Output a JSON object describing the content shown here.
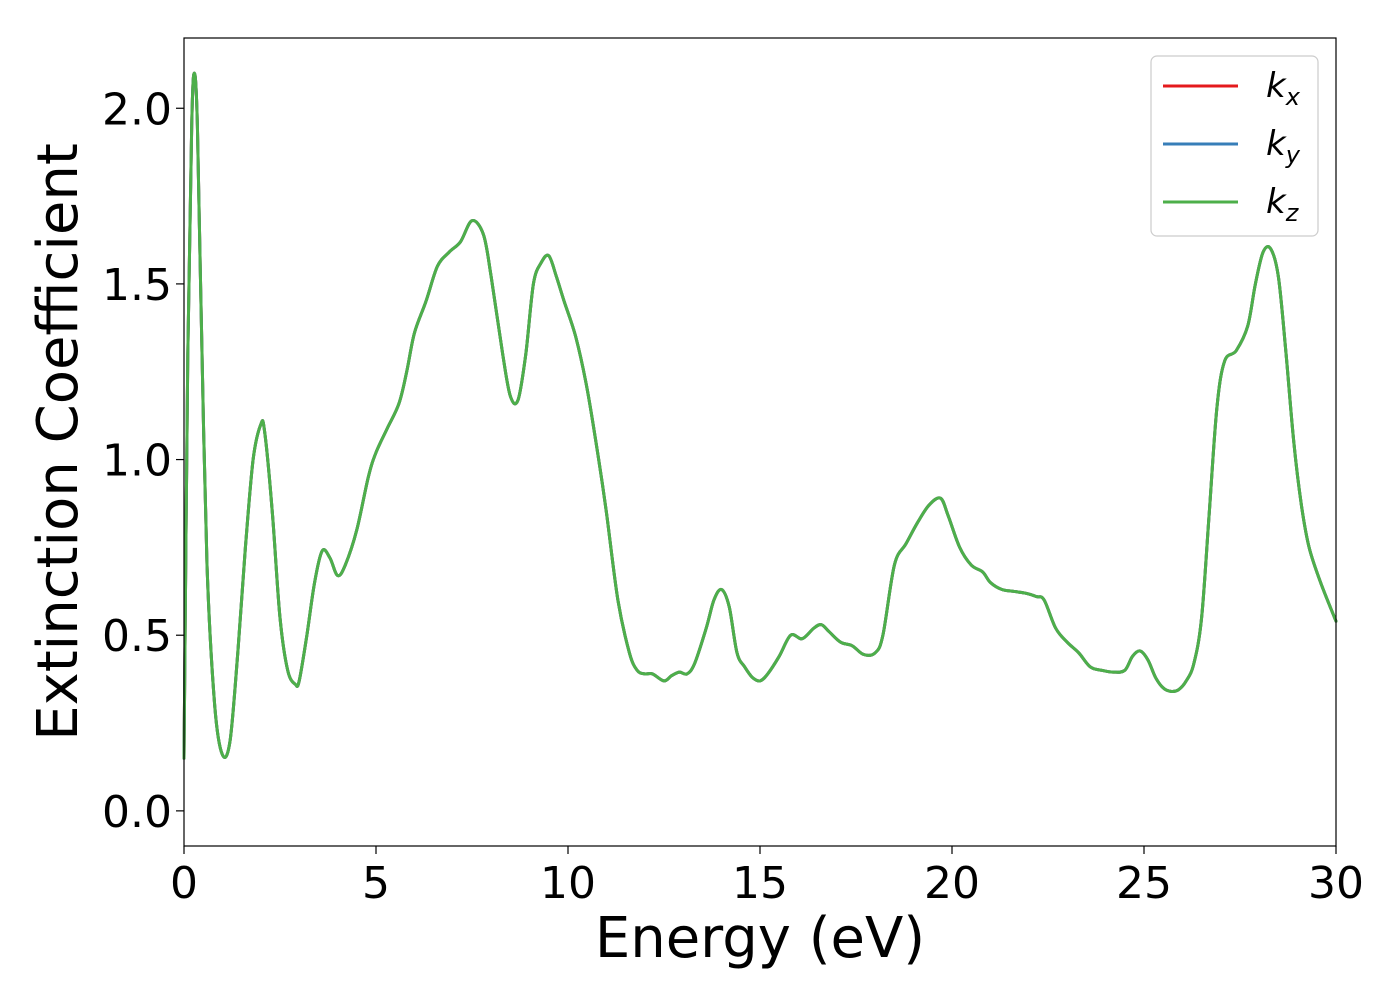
{
  "chart_data": {
    "type": "line",
    "title": "",
    "xlabel": "Energy (eV)",
    "ylabel": "Extinction Coefficient",
    "xlim": [
      0,
      30
    ],
    "ylim": [
      -0.1,
      2.2
    ],
    "xticks": [
      0,
      5,
      10,
      15,
      20,
      25,
      30
    ],
    "xtick_labels": [
      "0",
      "5",
      "10",
      "15",
      "20",
      "25",
      "30"
    ],
    "yticks": [
      0.0,
      0.5,
      1.0,
      1.5,
      2.0
    ],
    "ytick_labels": [
      "0.0",
      "0.5",
      "1.0",
      "1.5",
      "2.0"
    ],
    "grid": false,
    "legend_position": "top-right",
    "series": [
      {
        "name": "k_x",
        "label_base": "k",
        "label_sub": "x",
        "color": "#e41a1c",
        "x": [
          0,
          0.1,
          0.2,
          0.27,
          0.35,
          0.45,
          0.6,
          0.8,
          1.0,
          1.2,
          1.4,
          1.6,
          1.8,
          2.0,
          2.1,
          2.3,
          2.5,
          2.7,
          2.9,
          3.0,
          3.2,
          3.4,
          3.6,
          3.8,
          4.0,
          4.2,
          4.5,
          4.8,
          5.0,
          5.3,
          5.6,
          5.8,
          6.0,
          6.3,
          6.6,
          6.9,
          7.2,
          7.5,
          7.8,
          8.0,
          8.3,
          8.5,
          8.7,
          8.9,
          9.1,
          9.3,
          9.5,
          9.7,
          9.9,
          10.2,
          10.5,
          10.8,
          11.0,
          11.3,
          11.6,
          11.8,
          12.0,
          12.2,
          12.5,
          12.7,
          12.9,
          13.1,
          13.3,
          13.6,
          13.8,
          14.0,
          14.2,
          14.4,
          14.6,
          14.8,
          15.0,
          15.2,
          15.5,
          15.8,
          16.1,
          16.4,
          16.6,
          16.8,
          17.1,
          17.4,
          17.7,
          18.0,
          18.2,
          18.5,
          18.8,
          19.1,
          19.4,
          19.7,
          19.9,
          20.2,
          20.5,
          20.8,
          21.0,
          21.3,
          21.6,
          21.9,
          22.2,
          22.4,
          22.7,
          23.0,
          23.3,
          23.6,
          23.9,
          24.2,
          24.5,
          24.7,
          24.9,
          25.1,
          25.3,
          25.5,
          25.7,
          25.9,
          26.1,
          26.3,
          26.5,
          26.7,
          26.9,
          27.1,
          27.4,
          27.7,
          27.9,
          28.1,
          28.3,
          28.5,
          28.7,
          28.9,
          29.1,
          29.3,
          29.6,
          30.0
        ],
        "y": [
          0.15,
          1.3,
          1.95,
          2.1,
          1.95,
          1.4,
          0.7,
          0.3,
          0.16,
          0.2,
          0.45,
          0.75,
          1.0,
          1.1,
          1.08,
          0.85,
          0.55,
          0.4,
          0.36,
          0.37,
          0.5,
          0.65,
          0.74,
          0.72,
          0.67,
          0.7,
          0.8,
          0.95,
          1.02,
          1.09,
          1.16,
          1.25,
          1.36,
          1.45,
          1.55,
          1.59,
          1.62,
          1.68,
          1.64,
          1.52,
          1.3,
          1.18,
          1.17,
          1.3,
          1.5,
          1.56,
          1.58,
          1.52,
          1.45,
          1.35,
          1.2,
          1.0,
          0.85,
          0.6,
          0.45,
          0.4,
          0.39,
          0.39,
          0.37,
          0.385,
          0.395,
          0.39,
          0.42,
          0.52,
          0.6,
          0.63,
          0.58,
          0.45,
          0.41,
          0.38,
          0.37,
          0.39,
          0.44,
          0.5,
          0.49,
          0.52,
          0.53,
          0.51,
          0.48,
          0.47,
          0.445,
          0.45,
          0.5,
          0.7,
          0.76,
          0.82,
          0.87,
          0.89,
          0.84,
          0.75,
          0.7,
          0.68,
          0.65,
          0.63,
          0.625,
          0.62,
          0.61,
          0.6,
          0.52,
          0.48,
          0.45,
          0.41,
          0.4,
          0.395,
          0.4,
          0.44,
          0.455,
          0.43,
          0.38,
          0.35,
          0.34,
          0.345,
          0.37,
          0.42,
          0.55,
          0.85,
          1.15,
          1.28,
          1.31,
          1.38,
          1.5,
          1.59,
          1.6,
          1.52,
          1.3,
          1.05,
          0.87,
          0.75,
          0.65,
          0.54
        ]
      },
      {
        "name": "k_y",
        "label_base": "k",
        "label_sub": "y",
        "color": "#377eb8",
        "x": [
          0,
          0.1,
          0.2,
          0.27,
          0.35,
          0.45,
          0.6,
          0.8,
          1.0,
          1.2,
          1.4,
          1.6,
          1.8,
          2.0,
          2.1,
          2.3,
          2.5,
          2.7,
          2.9,
          3.0,
          3.2,
          3.4,
          3.6,
          3.8,
          4.0,
          4.2,
          4.5,
          4.8,
          5.0,
          5.3,
          5.6,
          5.8,
          6.0,
          6.3,
          6.6,
          6.9,
          7.2,
          7.5,
          7.8,
          8.0,
          8.3,
          8.5,
          8.7,
          8.9,
          9.1,
          9.3,
          9.5,
          9.7,
          9.9,
          10.2,
          10.5,
          10.8,
          11.0,
          11.3,
          11.6,
          11.8,
          12.0,
          12.2,
          12.5,
          12.7,
          12.9,
          13.1,
          13.3,
          13.6,
          13.8,
          14.0,
          14.2,
          14.4,
          14.6,
          14.8,
          15.0,
          15.2,
          15.5,
          15.8,
          16.1,
          16.4,
          16.6,
          16.8,
          17.1,
          17.4,
          17.7,
          18.0,
          18.2,
          18.5,
          18.8,
          19.1,
          19.4,
          19.7,
          19.9,
          20.2,
          20.5,
          20.8,
          21.0,
          21.3,
          21.6,
          21.9,
          22.2,
          22.4,
          22.7,
          23.0,
          23.3,
          23.6,
          23.9,
          24.2,
          24.5,
          24.7,
          24.9,
          25.1,
          25.3,
          25.5,
          25.7,
          25.9,
          26.1,
          26.3,
          26.5,
          26.7,
          26.9,
          27.1,
          27.4,
          27.7,
          27.9,
          28.1,
          28.3,
          28.5,
          28.7,
          28.9,
          29.1,
          29.3,
          29.6,
          30.0
        ],
        "y": [
          0.15,
          1.3,
          1.95,
          2.1,
          1.95,
          1.4,
          0.7,
          0.3,
          0.16,
          0.2,
          0.45,
          0.75,
          1.0,
          1.1,
          1.08,
          0.85,
          0.55,
          0.4,
          0.36,
          0.37,
          0.5,
          0.65,
          0.74,
          0.72,
          0.67,
          0.7,
          0.8,
          0.95,
          1.02,
          1.09,
          1.16,
          1.25,
          1.36,
          1.45,
          1.55,
          1.59,
          1.62,
          1.68,
          1.64,
          1.52,
          1.3,
          1.18,
          1.17,
          1.3,
          1.5,
          1.56,
          1.58,
          1.52,
          1.45,
          1.35,
          1.2,
          1.0,
          0.85,
          0.6,
          0.45,
          0.4,
          0.39,
          0.39,
          0.37,
          0.385,
          0.395,
          0.39,
          0.42,
          0.52,
          0.6,
          0.63,
          0.58,
          0.45,
          0.41,
          0.38,
          0.37,
          0.39,
          0.44,
          0.5,
          0.49,
          0.52,
          0.53,
          0.51,
          0.48,
          0.47,
          0.445,
          0.45,
          0.5,
          0.7,
          0.76,
          0.82,
          0.87,
          0.89,
          0.84,
          0.75,
          0.7,
          0.68,
          0.65,
          0.63,
          0.625,
          0.62,
          0.61,
          0.6,
          0.52,
          0.48,
          0.45,
          0.41,
          0.4,
          0.395,
          0.4,
          0.44,
          0.455,
          0.43,
          0.38,
          0.35,
          0.34,
          0.345,
          0.37,
          0.42,
          0.55,
          0.85,
          1.15,
          1.28,
          1.31,
          1.38,
          1.5,
          1.59,
          1.6,
          1.52,
          1.3,
          1.05,
          0.87,
          0.75,
          0.65,
          0.54
        ]
      },
      {
        "name": "k_z",
        "label_base": "k",
        "label_sub": "z",
        "color": "#4daf4a",
        "x": [
          0,
          0.1,
          0.2,
          0.27,
          0.35,
          0.45,
          0.6,
          0.8,
          1.0,
          1.2,
          1.4,
          1.6,
          1.8,
          2.0,
          2.1,
          2.3,
          2.5,
          2.7,
          2.9,
          3.0,
          3.2,
          3.4,
          3.6,
          3.8,
          4.0,
          4.2,
          4.5,
          4.8,
          5.0,
          5.3,
          5.6,
          5.8,
          6.0,
          6.3,
          6.6,
          6.9,
          7.2,
          7.5,
          7.8,
          8.0,
          8.3,
          8.5,
          8.7,
          8.9,
          9.1,
          9.3,
          9.5,
          9.7,
          9.9,
          10.2,
          10.5,
          10.8,
          11.0,
          11.3,
          11.6,
          11.8,
          12.0,
          12.2,
          12.5,
          12.7,
          12.9,
          13.1,
          13.3,
          13.6,
          13.8,
          14.0,
          14.2,
          14.4,
          14.6,
          14.8,
          15.0,
          15.2,
          15.5,
          15.8,
          16.1,
          16.4,
          16.6,
          16.8,
          17.1,
          17.4,
          17.7,
          18.0,
          18.2,
          18.5,
          18.8,
          19.1,
          19.4,
          19.7,
          19.9,
          20.2,
          20.5,
          20.8,
          21.0,
          21.3,
          21.6,
          21.9,
          22.2,
          22.4,
          22.7,
          23.0,
          23.3,
          23.6,
          23.9,
          24.2,
          24.5,
          24.7,
          24.9,
          25.1,
          25.3,
          25.5,
          25.7,
          25.9,
          26.1,
          26.3,
          26.5,
          26.7,
          26.9,
          27.1,
          27.4,
          27.7,
          27.9,
          28.1,
          28.3,
          28.5,
          28.7,
          28.9,
          29.1,
          29.3,
          29.6,
          30.0
        ],
        "y": [
          0.15,
          1.3,
          1.95,
          2.1,
          1.95,
          1.4,
          0.7,
          0.3,
          0.16,
          0.2,
          0.45,
          0.75,
          1.0,
          1.1,
          1.08,
          0.85,
          0.55,
          0.4,
          0.36,
          0.37,
          0.5,
          0.65,
          0.74,
          0.72,
          0.67,
          0.7,
          0.8,
          0.95,
          1.02,
          1.09,
          1.16,
          1.25,
          1.36,
          1.45,
          1.55,
          1.59,
          1.62,
          1.68,
          1.64,
          1.52,
          1.3,
          1.18,
          1.17,
          1.3,
          1.5,
          1.56,
          1.58,
          1.52,
          1.45,
          1.35,
          1.2,
          1.0,
          0.85,
          0.6,
          0.45,
          0.4,
          0.39,
          0.39,
          0.37,
          0.385,
          0.395,
          0.39,
          0.42,
          0.52,
          0.6,
          0.63,
          0.58,
          0.45,
          0.41,
          0.38,
          0.37,
          0.39,
          0.44,
          0.5,
          0.49,
          0.52,
          0.53,
          0.51,
          0.48,
          0.47,
          0.445,
          0.45,
          0.5,
          0.7,
          0.76,
          0.82,
          0.87,
          0.89,
          0.84,
          0.75,
          0.7,
          0.68,
          0.65,
          0.63,
          0.625,
          0.62,
          0.61,
          0.6,
          0.52,
          0.48,
          0.45,
          0.41,
          0.4,
          0.395,
          0.4,
          0.44,
          0.455,
          0.43,
          0.38,
          0.35,
          0.34,
          0.345,
          0.37,
          0.42,
          0.55,
          0.85,
          1.15,
          1.28,
          1.31,
          1.38,
          1.5,
          1.59,
          1.6,
          1.52,
          1.3,
          1.05,
          0.87,
          0.75,
          0.65,
          0.54
        ]
      }
    ]
  }
}
